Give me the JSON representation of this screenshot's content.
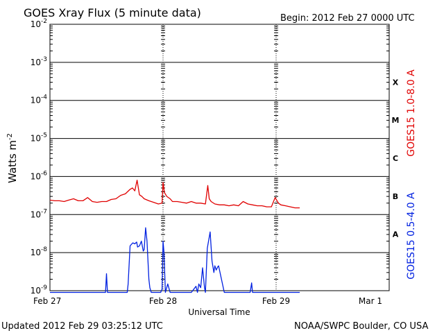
{
  "header": {
    "title": "GOES Xray Flux (5 minute data)",
    "begin": "Begin:  2012 Feb 27 0000 UTC"
  },
  "footer": {
    "updated": "Updated 2012 Feb 29 03:25:12 UTC",
    "credit": "NOAA/SWPC Boulder, CO USA"
  },
  "chart_data": {
    "type": "line",
    "title": "GOES Xray Flux (5 minute data)",
    "xlabel": "Universal Time",
    "ylabel": "Watts m",
    "ylabel_sup": "-2",
    "y_scale": "log",
    "ylim": [
      1e-09,
      0.01
    ],
    "xlim": [
      0,
      72
    ],
    "x_unit": "hours since 2012 Feb 27 0000 UTC",
    "grid": true,
    "x_ticks": [
      {
        "label": "Feb 27",
        "x": 0
      },
      {
        "label": "Feb 28",
        "x": 24
      },
      {
        "label": "Feb 29",
        "x": 48
      },
      {
        "label": "Mar 1",
        "x": 72
      }
    ],
    "y_ticks": [
      {
        "base": "10",
        "exp": "-9",
        "value": 1e-09
      },
      {
        "base": "10",
        "exp": "-8",
        "value": 1e-08
      },
      {
        "base": "10",
        "exp": "-7",
        "value": 1e-07
      },
      {
        "base": "10",
        "exp": "-6",
        "value": 1e-06
      },
      {
        "base": "10",
        "exp": "-5",
        "value": 1e-05
      },
      {
        "base": "10",
        "exp": "-4",
        "value": 0.0001
      },
      {
        "base": "10",
        "exp": "-3",
        "value": 0.001
      },
      {
        "base": "10",
        "exp": "-2",
        "value": 0.01
      }
    ],
    "flare_classes": [
      {
        "label": "A",
        "low": 1e-08,
        "high": 1e-07
      },
      {
        "label": "B",
        "low": 1e-07,
        "high": 1e-06
      },
      {
        "label": "C",
        "low": 1e-06,
        "high": 1e-05
      },
      {
        "label": "M",
        "low": 1e-05,
        "high": 0.0001
      },
      {
        "label": "X",
        "low": 0.0001,
        "high": 0.001
      }
    ],
    "series": [
      {
        "name": "GOES15 1.0-8.0 A",
        "color": "#e00000",
        "x": [
          0,
          1,
          2,
          3,
          4,
          5,
          6,
          7,
          8,
          9,
          10,
          11,
          12,
          13,
          14,
          15,
          16,
          17,
          17.5,
          18,
          18.5,
          19,
          19.5,
          20,
          21,
          22,
          23,
          23.8,
          24,
          24.3,
          24.8,
          25.5,
          26,
          27,
          28,
          29,
          30,
          31,
          32,
          33,
          33.5,
          33.8,
          34.2,
          35,
          36,
          37,
          38,
          39,
          40,
          41,
          42,
          43,
          44,
          45,
          46,
          47,
          47.8,
          48.5,
          49,
          50,
          51,
          52,
          53
        ],
        "y": [
          2.4e-07,
          2.3e-07,
          2.3e-07,
          2.2e-07,
          2.4e-07,
          2.6e-07,
          2.3e-07,
          2.3e-07,
          2.8e-07,
          2.2e-07,
          2.1e-07,
          2.2e-07,
          2.2e-07,
          2.5e-07,
          2.6e-07,
          3.2e-07,
          3.5e-07,
          4.6e-07,
          5e-07,
          4.2e-07,
          8e-07,
          3.3e-07,
          3e-07,
          2.6e-07,
          2.3e-07,
          2.1e-07,
          1.9e-07,
          2e-07,
          7e-07,
          3.8e-07,
          3e-07,
          2.6e-07,
          2.2e-07,
          2.2e-07,
          2.1e-07,
          2e-07,
          2.2e-07,
          2e-07,
          2e-07,
          1.9e-07,
          5.8e-07,
          2.6e-07,
          2.2e-07,
          1.9e-07,
          1.8e-07,
          1.8e-07,
          1.7e-07,
          1.8e-07,
          1.7e-07,
          2.2e-07,
          1.9e-07,
          1.8e-07,
          1.7e-07,
          1.7e-07,
          1.6e-07,
          1.6e-07,
          2.8e-07,
          2e-07,
          1.8e-07,
          1.7e-07,
          1.6e-07,
          1.5e-07,
          1.5e-07
        ]
      },
      {
        "name": "GOES15 0.5-4.0 A",
        "color": "#0020e0",
        "x": [
          0,
          11.8,
          12,
          12.2,
          16.4,
          16.6,
          17,
          17.2,
          17.6,
          18,
          18.4,
          18.6,
          19,
          19.4,
          19.8,
          20,
          20.3,
          20.6,
          21,
          21.2,
          21.5,
          23.5,
          23.8,
          24,
          24.2,
          24.5,
          25,
          25.5,
          30,
          31,
          31.3,
          31.6,
          32,
          32.4,
          32.8,
          33,
          33.4,
          34,
          34.4,
          34.8,
          35,
          35.3,
          35.6,
          35.8,
          37,
          42.5,
          42.8,
          43,
          53
        ],
        "y": [
          9e-10,
          9e-10,
          2.8e-09,
          9e-10,
          9e-10,
          1.5e-09,
          1.5e-08,
          1.6e-08,
          1.8e-08,
          1.7e-08,
          1.9e-08,
          1.4e-08,
          1.5e-08,
          2e-08,
          1.1e-08,
          1.2e-08,
          4.5e-08,
          2e-08,
          2e-09,
          1.2e-09,
          9e-10,
          9e-10,
          1.1e-09,
          2e-08,
          1e-08,
          9e-10,
          1.5e-09,
          9e-10,
          9e-10,
          1.3e-09,
          9e-10,
          1.5e-09,
          1.2e-09,
          4e-09,
          1.2e-09,
          9e-10,
          1.3e-08,
          3.5e-08,
          6e-09,
          3e-09,
          4.5e-09,
          3.5e-09,
          4.2e-09,
          4.5e-09,
          9e-10,
          9e-10,
          1.6e-09,
          9e-10,
          9e-10
        ]
      }
    ]
  }
}
